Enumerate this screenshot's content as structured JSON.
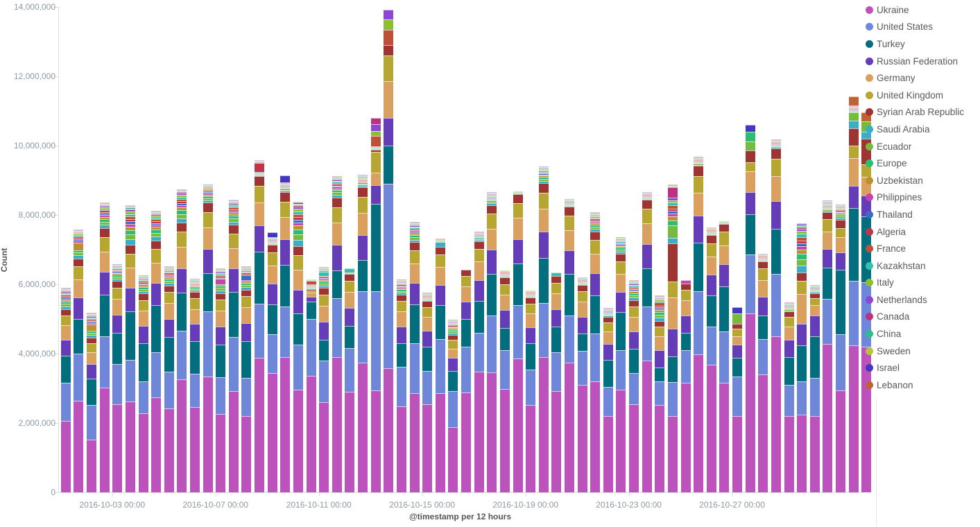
{
  "chart_data": {
    "type": "bar",
    "subtype": "stacked-time-histogram",
    "title": "",
    "ylabel": "Count",
    "xlabel": "@timestamp per 12 hours",
    "ylim": [
      0,
      14000000
    ],
    "ytick_step": 2000000,
    "ytick_labels": [
      "0",
      "2,000,000",
      "4,000,000",
      "6,000,000",
      "8,000,000",
      "10,000,000",
      "12,000,000",
      "14,000,000"
    ],
    "grid": false,
    "legend_position": "right",
    "unit_scale": 1000000,
    "xticks": [
      {
        "bar_index": 4,
        "label": "2016-10-03 00:00"
      },
      {
        "bar_index": 12,
        "label": "2016-10-07 00:00"
      },
      {
        "bar_index": 20,
        "label": "2016-10-11 00:00"
      },
      {
        "bar_index": 28,
        "label": "2016-10-15 00:00"
      },
      {
        "bar_index": 36,
        "label": "2016-10-19 00:00"
      },
      {
        "bar_index": 44,
        "label": "2016-10-23 00:00"
      },
      {
        "bar_index": 52,
        "label": "2016-10-27 00:00"
      }
    ],
    "series_order": [
      "ukraine",
      "united_states",
      "turkey",
      "russian_federation",
      "germany",
      "united_kingdom",
      "syrian_arab_republic",
      "saudi_arabia",
      "ecuador",
      "europe",
      "uzbekistan",
      "philippines",
      "thailand",
      "algeria",
      "france",
      "kazakhstan",
      "italy",
      "netherlands",
      "canada",
      "china",
      "sweden",
      "israel",
      "lebanon"
    ],
    "legend": [
      {
        "key": "ukraine",
        "label": "Ukraine"
      },
      {
        "key": "united_states",
        "label": "United States"
      },
      {
        "key": "turkey",
        "label": "Turkey"
      },
      {
        "key": "russian_federation",
        "label": "Russian Federation"
      },
      {
        "key": "germany",
        "label": "Germany"
      },
      {
        "key": "united_kingdom",
        "label": "United Kingdom"
      },
      {
        "key": "syrian_arab_republic",
        "label": "Syrian Arab Republic"
      },
      {
        "key": "saudi_arabia",
        "label": "Saudi Arabia"
      },
      {
        "key": "ecuador",
        "label": "Ecuador"
      },
      {
        "key": "europe",
        "label": "Europe"
      },
      {
        "key": "uzbekistan",
        "label": "Uzbekistan"
      },
      {
        "key": "philippines",
        "label": "Philippines"
      },
      {
        "key": "thailand",
        "label": "Thailand"
      },
      {
        "key": "algeria",
        "label": "Algeria"
      },
      {
        "key": "france",
        "label": "France"
      },
      {
        "key": "kazakhstan",
        "label": "Kazakhstan"
      },
      {
        "key": "italy",
        "label": "Italy"
      },
      {
        "key": "netherlands",
        "label": "Netherlands"
      },
      {
        "key": "canada",
        "label": "Canada"
      },
      {
        "key": "china",
        "label": "China"
      },
      {
        "key": "sweden",
        "label": "Sweden"
      },
      {
        "key": "israel",
        "label": "Israel"
      },
      {
        "key": "lebanon",
        "label": "Lebanon"
      }
    ],
    "colors": {
      "ukraine": "#bc52bc",
      "united_states": "#6f87d8",
      "turkey": "#026e7e",
      "russian_federation": "#663db8",
      "germany": "#d9a05f",
      "united_kingdom": "#b8a632",
      "syrian_arab_republic": "#9e3533",
      "saudi_arabia": "#3caec4",
      "ecuador": "#75bc3e",
      "europe": "#2cbe70",
      "uzbekistan": "#b9922f",
      "philippines": "#c743ae",
      "thailand": "#3a6cc6",
      "algeria": "#c13548",
      "france": "#bf5038",
      "kazakhstan": "#35bfad",
      "italy": "#8fbe32",
      "netherlands": "#8f46d2",
      "canada": "#bc3180",
      "china": "#2dbe8b",
      "sweden": "#b9c23f",
      "israel": "#4438c2",
      "lebanon": "#bf6334"
    },
    "default_upper_fractions": {
      "russian_federation": 0.08,
      "germany": 0.07,
      "united_kingdom": 0.05,
      "syrian_arab_republic": 0.03
    },
    "minor_weights": {
      "saudi_arabia": 0.14,
      "ecuador": 0.13,
      "europe": 0.11,
      "uzbekistan": 0.09,
      "philippines": 0.07,
      "thailand": 0.06,
      "algeria": 0.06,
      "france": 0.07,
      "kazakhstan": 0.06,
      "italy": 0.06,
      "netherlands": 0.05,
      "canada": 0.03,
      "china": 0.02,
      "sweden": 0.02,
      "israel": 0.02,
      "lebanon": 0.01
    },
    "bars_note": "values in millions of Count; t=total, ua=Ukraine, us=United States, tr=Turkey; ov=explicit per-country values; remaining countries get default fractions / minor weight share of remainder",
    "bars": [
      {
        "t": 5.85,
        "ua": 2.07,
        "us": 1.1,
        "tr": 0.77
      },
      {
        "t": 7.55,
        "ua": 2.65,
        "us": 1.36,
        "tr": 1.0,
        "ov": {
          "uzbekistan": 0.22
        }
      },
      {
        "t": 5.13,
        "ua": 1.53,
        "us": 1.0,
        "tr": 0.75,
        "ov": {
          "uzbekistan": 0.18
        }
      },
      {
        "t": 8.33,
        "ua": 3.03,
        "us": 1.47,
        "tr": 1.2
      },
      {
        "t": 6.55,
        "ua": 2.55,
        "us": 1.15,
        "tr": 0.9
      },
      {
        "t": 8.27,
        "ua": 2.62,
        "us": 1.21,
        "tr": 1.4
      },
      {
        "t": 6.23,
        "ua": 2.29,
        "us": 0.91,
        "tr": 1.1
      },
      {
        "t": 8.1,
        "ua": 2.75,
        "us": 1.3,
        "tr": 1.35
      },
      {
        "t": 6.47,
        "ua": 2.43,
        "us": 1.05,
        "tr": 1.0
      },
      {
        "t": 8.72,
        "ua": 3.27,
        "us": 1.4,
        "tr": 1.1
      },
      {
        "t": 6.12,
        "ua": 2.47,
        "us": 0.95,
        "tr": 0.95
      },
      {
        "t": 8.85,
        "ua": 3.35,
        "us": 1.87,
        "tr": 1.1
      },
      {
        "t": 6.41,
        "ua": 2.27,
        "us": 1.05,
        "tr": 0.95,
        "ov": {
          "philippines": 0.15
        }
      },
      {
        "t": 8.4,
        "ua": 2.93,
        "us": 1.55,
        "tr": 1.3
      },
      {
        "t": 6.47,
        "ua": 2.21,
        "us": 1.1,
        "tr": 1.05,
        "ov": {
          "thailand": 0.15
        }
      },
      {
        "t": 9.5,
        "ua": 3.89,
        "us": 1.55,
        "tr": 1.5,
        "ov": {
          "algeria": 0.25
        }
      },
      {
        "t": 7.41,
        "ua": 3.45,
        "us": 1.12,
        "tr": 0.86,
        "ov": {
          "israel": 0.15
        }
      },
      {
        "t": 9.1,
        "ua": 3.91,
        "us": 1.46,
        "tr": 1.2,
        "ov": {
          "israel": 0.2
        }
      },
      {
        "t": 8.37,
        "ua": 2.97,
        "us": 1.3,
        "tr": 0.9
      },
      {
        "t": 6.05,
        "ua": 3.37,
        "us": 1.63,
        "tr": 0.5,
        "ov": {
          "russian_federation": 0.15,
          "germany": 0.12,
          "united_kingdom": 0.06,
          "syrian_arab_republic": 0.03,
          "france": 0.1
        }
      },
      {
        "t": 6.47,
        "ua": 2.61,
        "us": 1.2,
        "tr": 0.6,
        "ov": {
          "kazakhstan": 0.12
        }
      },
      {
        "t": 9.08,
        "ua": 3.9,
        "us": 1.71,
        "tr": 0.8
      },
      {
        "t": 6.45,
        "ua": 2.91,
        "us": 1.26,
        "tr": 0.64,
        "ov": {
          "kazakhstan": 0.12
        }
      },
      {
        "t": 9.1,
        "ua": 3.75,
        "us": 2.05,
        "tr": 0.9
      },
      {
        "t": 10.77,
        "ua": 2.95,
        "us": 2.85,
        "tr": 2.53,
        "ov": {
          "russian_federation": 0.53,
          "germany": 0.37,
          "united_kingdom": 0.6,
          "syrian_arab_republic": 0.05,
          "canada": 0.18,
          "netherlands": 0.2,
          "italy": 0.15,
          "france": 0.3
        }
      },
      {
        "t": 13.92,
        "ua": 3.58,
        "us": 5.32,
        "tr": 1.11,
        "ov": {
          "russian_federation": 0.79,
          "germany": 1.06,
          "united_kingdom": 0.74,
          "syrian_arab_republic": 0.3,
          "france": 0.44,
          "italy": 0.3,
          "netherlands": 0.28
        }
      },
      {
        "t": 6.1,
        "ua": 2.49,
        "us": 1.14,
        "tr": 0.67
      },
      {
        "t": 7.75,
        "ua": 2.87,
        "us": 1.43,
        "tr": 1.13
      },
      {
        "t": 5.7,
        "ua": 2.55,
        "us": 0.96,
        "tr": 0.69
      },
      {
        "t": 7.3,
        "ua": 2.87,
        "us": 1.56,
        "tr": 0.97,
        "ov": {
          "saudi_arabia": 0.15
        }
      },
      {
        "t": 4.95,
        "ua": 1.88,
        "us": 1.04,
        "tr": 0.58,
        "ov": {
          "russian_federation": 0.38,
          "germany": 0.27
        }
      },
      {
        "t": 6.15,
        "ua": 2.88,
        "us": 1.33,
        "tr": 0.8
      },
      {
        "t": 7.47,
        "ua": 3.48,
        "us": 1.13,
        "tr": 0.92
      },
      {
        "t": 8.61,
        "ua": 3.47,
        "us": 1.64,
        "tr": 1.2
      },
      {
        "t": 6.28,
        "ua": 2.99,
        "us": 1.11,
        "tr": 0.65
      },
      {
        "t": 8.67,
        "ua": 3.87,
        "us": 1.54,
        "tr": 1.2
      },
      {
        "t": 5.71,
        "ua": 2.53,
        "us": 1.02,
        "tr": 0.75
      },
      {
        "t": 9.37,
        "ua": 3.91,
        "us": 1.56,
        "tr": 1.3
      },
      {
        "t": 6.35,
        "ua": 2.92,
        "us": 1.13,
        "tr": 0.73,
        "ov": {
          "kazakhstan": 0.1
        }
      },
      {
        "t": 8.4,
        "ua": 3.75,
        "us": 1.36,
        "tr": 1.2
      },
      {
        "t": 6.08,
        "ua": 3.1,
        "us": 0.98,
        "tr": 0.5
      },
      {
        "t": 8.03,
        "ua": 3.2,
        "us": 1.38,
        "tr": 1.1
      },
      {
        "t": 5.25,
        "ua": 2.2,
        "us": 0.85,
        "tr": 0.78,
        "ov": {
          "russian_federation": 0.45
        }
      },
      {
        "t": 7.33,
        "ua": 2.97,
        "us": 1.14,
        "tr": 1.09
      },
      {
        "t": 6.07,
        "ua": 2.55,
        "us": 0.9,
        "tr": 0.7
      },
      {
        "t": 8.55,
        "ua": 3.8,
        "us": 1.57,
        "tr": 1.1
      },
      {
        "t": 5.65,
        "ua": 2.53,
        "us": 0.67,
        "tr": 0.4,
        "ov": {
          "russian_federation": 0.5,
          "france": 0.1
        }
      },
      {
        "t": 8.88,
        "ua": 2.21,
        "us": 0.97,
        "tr": 0.75,
        "ov": {
          "russian_federation": 0.8,
          "germany": 0.9,
          "syrian_arab_republic": 1.1,
          "canada": 0.3,
          "ecuador": 0.35
        }
      },
      {
        "t": 6.15,
        "ua": 3.17,
        "us": 0.94,
        "tr": 0.5,
        "ov": {
          "philippines": 0.1
        }
      },
      {
        "t": 9.63,
        "ua": 3.98,
        "us": 1.82,
        "tr": 1.4
      },
      {
        "t": 7.53,
        "ua": 3.68,
        "us": 1.1,
        "tr": 0.9
      },
      {
        "t": 7.81,
        "ua": 3.17,
        "us": 1.48,
        "tr": 1.3
      },
      {
        "t": 5.35,
        "ua": 2.2,
        "us": 1.15,
        "tr": 0.53,
        "ov": {
          "russian_federation": 0.39,
          "germany": 0.23,
          "united_kingdom": 0.23,
          "syrian_arab_republic": 0.14,
          "ecuador": 0.3,
          "israel": 0.18
        }
      },
      {
        "t": 10.6,
        "ua": 5.17,
        "us": 1.7,
        "tr": 1.16,
        "ov": {
          "russian_federation": 0.64,
          "germany": 0.6,
          "united_kingdom": 0.26,
          "syrian_arab_republic": 0.34,
          "ecuador": 0.26,
          "europe": 0.27,
          "israel": 0.2
        }
      },
      {
        "t": 6.8,
        "ua": 3.41,
        "us": 1.02,
        "tr": 0.67
      },
      {
        "t": 10.12,
        "ua": 4.5,
        "us": 1.8,
        "tr": 1.3
      },
      {
        "t": 5.43,
        "ua": 2.2,
        "us": 0.9,
        "tr": 0.81,
        "ov": {
          "russian_federation": 0.49
        }
      },
      {
        "t": 7.75,
        "ua": 2.25,
        "us": 0.96,
        "tr": 1.04,
        "ov": {
          "germany": 0.85
        }
      },
      {
        "t": 5.9,
        "ua": 2.21,
        "us": 1.1,
        "tr": 1.19,
        "ov": {
          "russian_federation": 0.6,
          "germany": 0.3,
          "united_kingdom": 0.2,
          "syrian_arab_republic": 0.15
        }
      },
      {
        "t": 8.35,
        "ua": 4.28,
        "us": 1.3,
        "tr": 0.9,
        "ov": {
          "russian_federation": 0.55,
          "germany": 0.5,
          "united_kingdom": 0.35,
          "syrian_arab_republic": 0.2
        }
      },
      {
        "t": 8.27,
        "ua": 2.95,
        "us": 1.62,
        "tr": 1.85,
        "ov": {
          "russian_federation": 0.5,
          "germany": 0.45,
          "united_kingdom": 0.25,
          "syrian_arab_republic": 0.25
        }
      },
      {
        "t": 11.35,
        "ua": 4.25,
        "us": 1.85,
        "tr": 2.1,
        "ov": {
          "russian_federation": 0.65,
          "germany": 0.8,
          "united_kingdom": 0.35,
          "syrian_arab_republic": 0.5,
          "saudi_arabia": 0.22,
          "ecuador": 0.25,
          "lebanon": 0.25
        }
      },
      {
        "t": 10.98,
        "ua": 4.21,
        "us": 1.85,
        "tr": 1.9,
        "ov": {
          "russian_federation": 0.6,
          "germany": 0.55,
          "united_kingdom": 0.35,
          "syrian_arab_republic": 0.75,
          "saudi_arabia": 0.2,
          "ecuador": 0.3,
          "lebanon": 0.25
        }
      }
    ]
  }
}
